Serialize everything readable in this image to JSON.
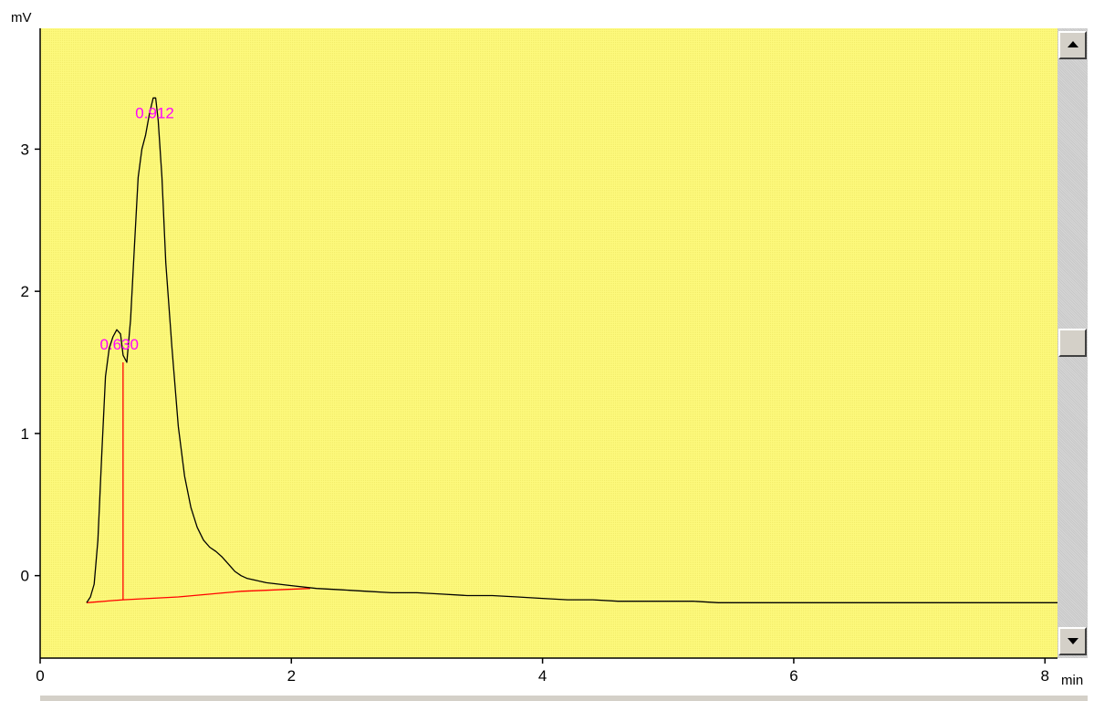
{
  "chart_data": {
    "type": "line",
    "xlabel": "min",
    "ylabel": "mV",
    "xlim": [
      0,
      8.1
    ],
    "ylim": [
      -0.58,
      3.85
    ],
    "x_ticks": [
      0,
      2,
      4,
      6,
      8
    ],
    "y_ticks": [
      0,
      1,
      2,
      3
    ],
    "grid": false,
    "colors": {
      "plot_background": "#fdf97c",
      "trace": "#000000",
      "baseline": "#ff0000",
      "peak_label": "#ff00ff"
    },
    "series": [
      {
        "x": [
          0.37,
          0.4,
          0.43,
          0.46,
          0.49,
          0.52,
          0.55,
          0.58,
          0.61,
          0.64,
          0.66,
          0.69,
          0.72,
          0.75,
          0.78,
          0.81,
          0.84,
          0.87,
          0.9,
          0.92,
          0.94,
          0.97,
          1.0,
          1.05,
          1.1,
          1.15,
          1.2,
          1.25,
          1.3,
          1.35,
          1.4,
          1.45,
          1.5,
          1.55,
          1.6,
          1.65,
          1.7,
          1.8,
          1.9,
          2.0,
          2.2,
          2.4,
          2.6,
          2.8,
          3.0,
          3.2,
          3.4,
          3.6,
          3.8,
          4.0,
          4.2,
          4.4,
          4.6,
          4.8,
          5.0,
          5.2,
          5.4,
          5.6,
          5.8,
          6.0,
          6.4,
          6.8,
          7.2,
          7.6,
          8.0,
          8.1
        ],
        "y": [
          -0.19,
          -0.15,
          -0.06,
          0.25,
          0.85,
          1.4,
          1.6,
          1.68,
          1.73,
          1.7,
          1.55,
          1.5,
          1.8,
          2.3,
          2.8,
          3.0,
          3.1,
          3.25,
          3.36,
          3.36,
          3.2,
          2.8,
          2.2,
          1.6,
          1.05,
          0.7,
          0.48,
          0.34,
          0.25,
          0.2,
          0.17,
          0.13,
          0.08,
          0.03,
          0.0,
          -0.02,
          -0.03,
          -0.05,
          -0.06,
          -0.07,
          -0.09,
          -0.1,
          -0.11,
          -0.12,
          -0.12,
          -0.13,
          -0.14,
          -0.14,
          -0.15,
          -0.16,
          -0.17,
          -0.17,
          -0.18,
          -0.18,
          -0.18,
          -0.18,
          -0.19,
          -0.19,
          -0.19,
          -0.19,
          -0.19,
          -0.19,
          -0.19,
          -0.19,
          -0.19,
          -0.19
        ]
      }
    ],
    "baseline": {
      "x": [
        0.37,
        0.66,
        1.1,
        1.6,
        2.15
      ],
      "y": [
        -0.19,
        -0.17,
        -0.15,
        -0.11,
        -0.09
      ]
    },
    "drop_lines": [
      {
        "x": 0.66,
        "y_top": 1.5,
        "y_bottom": -0.17
      }
    ],
    "peaks": [
      {
        "x": 0.63,
        "y": 1.73,
        "label": "0.630"
      },
      {
        "x": 0.912,
        "y": 3.36,
        "label": "0.912"
      }
    ]
  }
}
